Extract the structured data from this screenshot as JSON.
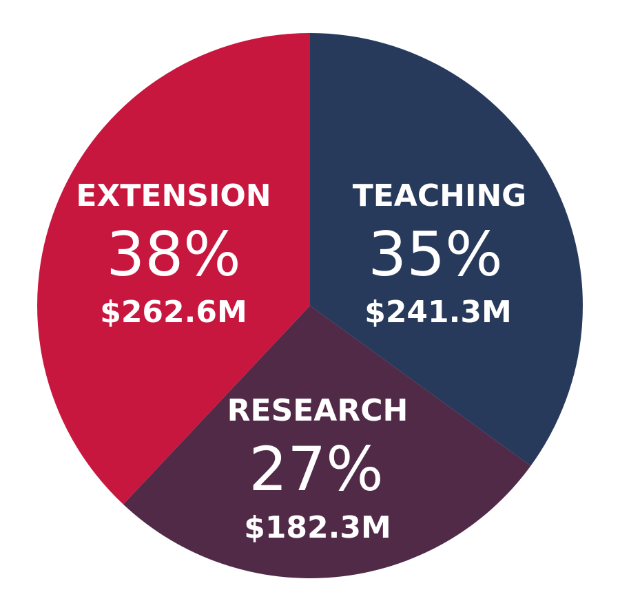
{
  "chart_data": {
    "type": "pie",
    "slices": [
      {
        "label": "TEACHING",
        "value": 35,
        "percent_label": "35%",
        "amount": "$241.3M",
        "color": "#283a5b"
      },
      {
        "label": "RESEARCH",
        "value": 27,
        "percent_label": "27%",
        "amount": "$182.3M",
        "color": "#512a48"
      },
      {
        "label": "EXTENSION",
        "value": 38,
        "percent_label": "38%",
        "amount": "$262.6M",
        "color": "#c8173e"
      }
    ]
  }
}
